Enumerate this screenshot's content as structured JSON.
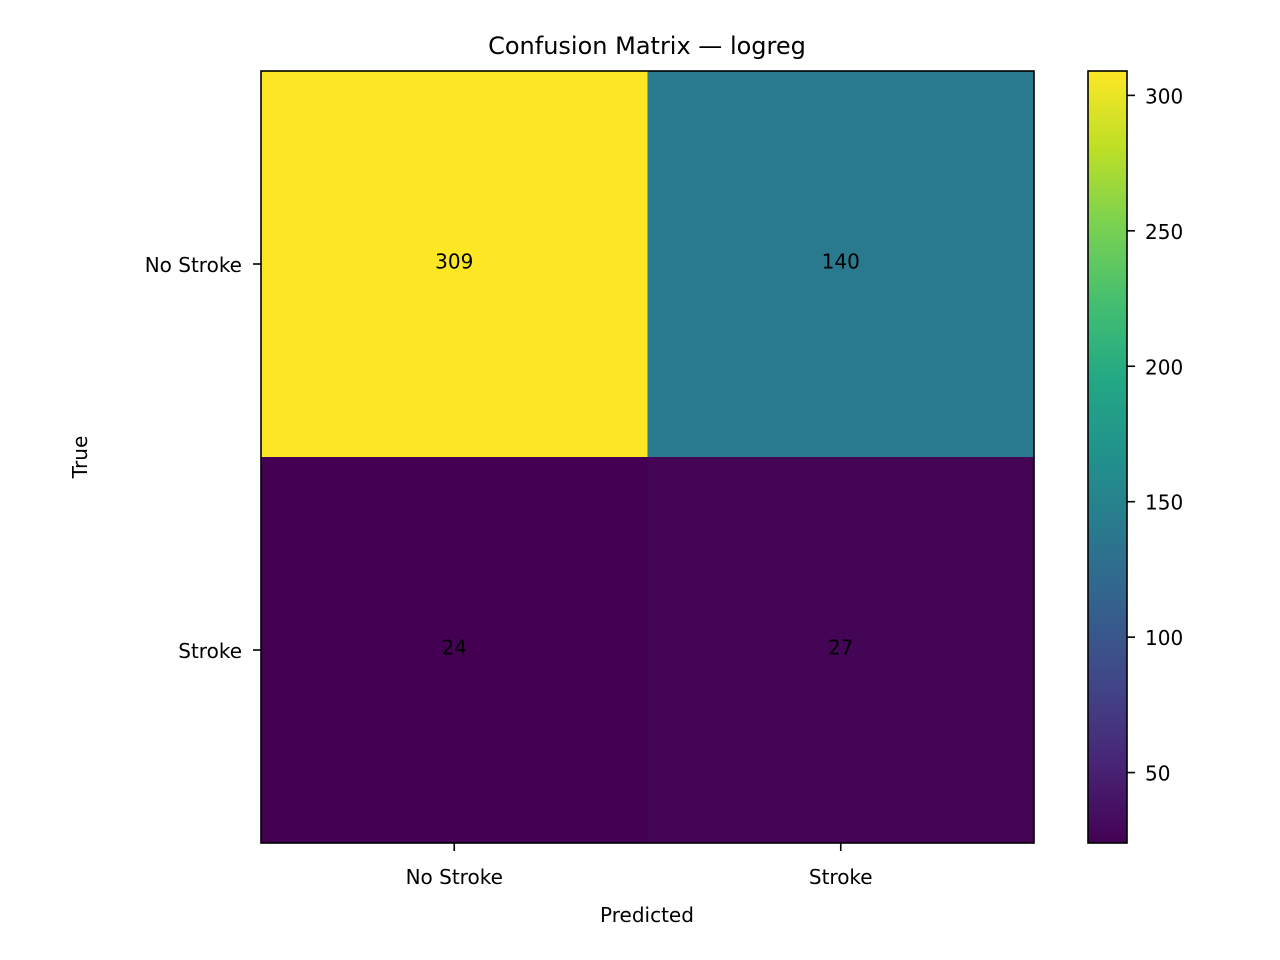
{
  "chart_data": {
    "type": "heatmap",
    "title": "Confusion Matrix — logreg",
    "xlabel": "Predicted",
    "ylabel": "True",
    "x_categories": [
      "No Stroke",
      "Stroke"
    ],
    "y_categories": [
      "No Stroke",
      "Stroke"
    ],
    "matrix": [
      [
        309,
        140
      ],
      [
        24,
        27
      ]
    ],
    "colormap": "viridis",
    "colorbar": {
      "min": 24,
      "max": 309,
      "ticks": [
        50,
        100,
        150,
        200,
        250,
        300
      ]
    },
    "grid": false
  }
}
